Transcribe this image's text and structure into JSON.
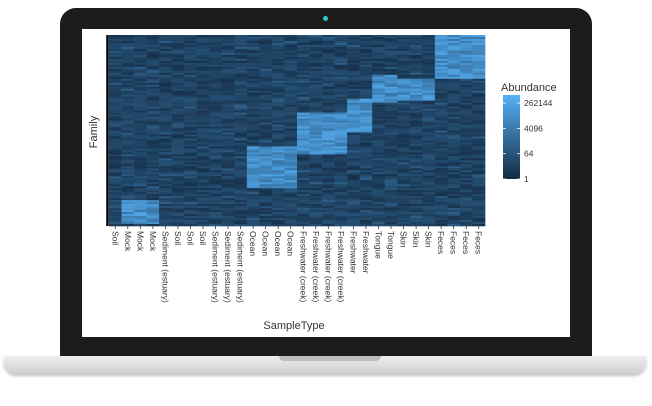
{
  "chart_data": {
    "type": "heatmap",
    "title": "",
    "xlabel": "SampleType",
    "ylabel": "Family",
    "x_categories": [
      "Soil",
      "Mock",
      "Mock",
      "Mock",
      "Sediment (estuary)",
      "Soil",
      "Soil",
      "Soil",
      "Sediment (estuary)",
      "Sediment (estuary)",
      "Sediment (estuary)",
      "Ocean",
      "Ocean",
      "Ocean",
      "Ocean",
      "Freshwater (creek)",
      "Freshwater (creek)",
      "Freshwater (creek)",
      "Freshwater (creek)",
      "Freshwater",
      "Freshwater",
      "Tongue",
      "Tongue",
      "Skin",
      "Skin",
      "Skin",
      "Feces",
      "Feces",
      "Feces",
      "Feces"
    ],
    "legend": {
      "title": "Abundance",
      "ticks": [
        "262144",
        "4096",
        "64",
        "1"
      ],
      "tick_values": [
        262144,
        4096,
        64,
        1
      ],
      "scale": "log",
      "range": [
        1,
        1000000
      ],
      "low_color": "#132B43",
      "high_color": "#56B1F7"
    },
    "high_abundance_blocks": [
      {
        "samples": [
          "Mock",
          "Mock",
          "Mock"
        ],
        "family_rows": [
          0.86,
          0.98
        ]
      },
      {
        "samples": [
          "Ocean",
          "Ocean",
          "Ocean",
          "Ocean"
        ],
        "family_rows": [
          0.58,
          0.8
        ]
      },
      {
        "samples": [
          "Freshwater (creek)",
          "Freshwater (creek)",
          "Freshwater (creek)",
          "Freshwater (creek)"
        ],
        "family_rows": [
          0.4,
          0.62
        ]
      },
      {
        "samples": [
          "Freshwater",
          "Freshwater"
        ],
        "family_rows": [
          0.33,
          0.5
        ]
      },
      {
        "samples": [
          "Tongue",
          "Tongue"
        ],
        "family_rows": [
          0.2,
          0.35
        ]
      },
      {
        "samples": [
          "Skin",
          "Skin",
          "Skin"
        ],
        "family_rows": [
          0.22,
          0.34
        ]
      },
      {
        "samples": [
          "Feces",
          "Feces",
          "Feces",
          "Feces"
        ],
        "family_rows": [
          0.0,
          0.22
        ]
      }
    ]
  }
}
